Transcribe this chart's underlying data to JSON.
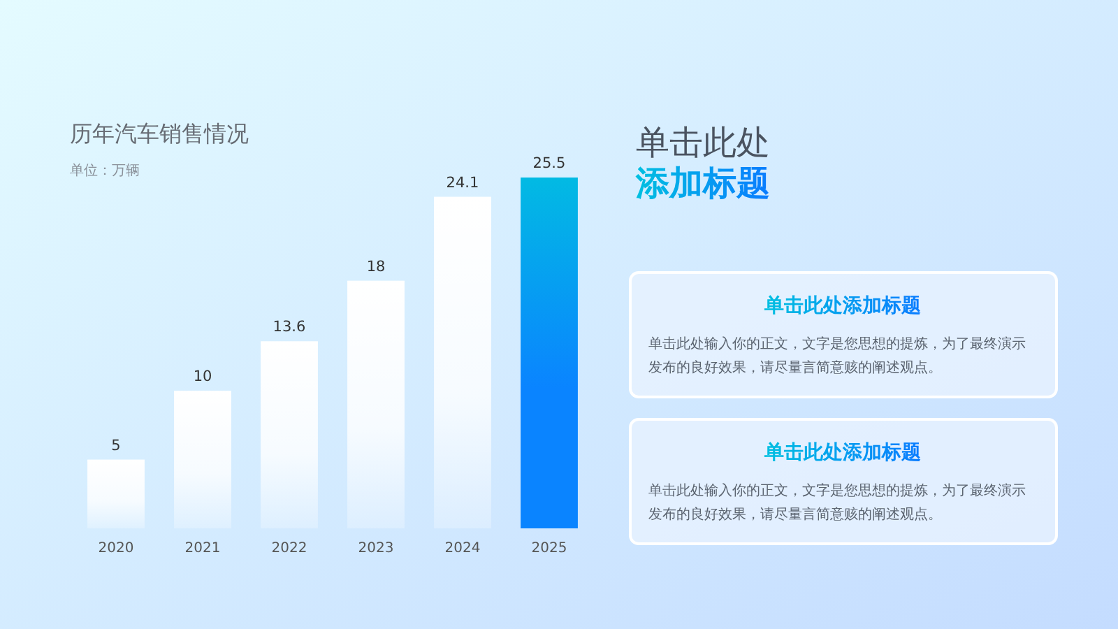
{
  "chart_data": [
    {
      "type": "bar",
      "title": "历年汽车销售情况",
      "subtitle": "单位：万辆",
      "categories": [
        "2020",
        "2021",
        "2022",
        "2023",
        "2024",
        "2025"
      ],
      "values": [
        5,
        10,
        13.6,
        18,
        24.1,
        25.5
      ],
      "colors": [
        "#ffffff",
        "#ffffff",
        "#ffffff",
        "#ffffff",
        "#ffffff",
        "#0a84ff"
      ],
      "data_labels": true
    },
    {
      "type": "other",
      "title": "单击此处",
      "subtitle": "添加标题",
      "annotations": [
        "单击此处添加标题",
        "单击此处输入你的正文，文字是您思想的提炼，为了最终演示发布的良好效果，请尽量言简意赅的阐述观点。",
        "单击此处添加标题",
        "单击此处输入你的正文，文字是您思想的提炼，为了最终演示发布的良好效果，请尽量言简意赅的阐述观点。"
      ]
    }
  ]
}
